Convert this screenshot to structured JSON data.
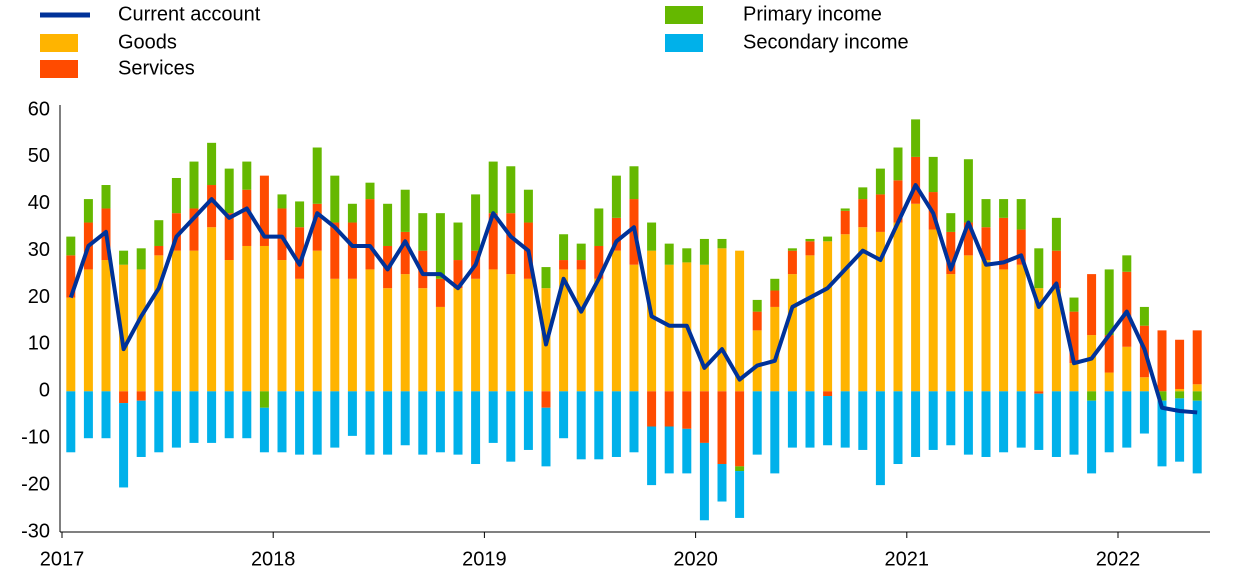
{
  "chart_data": {
    "type": "bar",
    "categories": [
      "2017",
      null,
      null,
      null,
      null,
      null,
      null,
      null,
      null,
      null,
      null,
      null,
      "2018",
      null,
      null,
      null,
      null,
      null,
      null,
      null,
      null,
      null,
      null,
      null,
      "2019",
      null,
      null,
      null,
      null,
      null,
      null,
      null,
      null,
      null,
      null,
      null,
      "2020",
      null,
      null,
      null,
      null,
      null,
      null,
      null,
      null,
      null,
      null,
      null,
      "2021",
      null,
      null,
      null,
      null,
      null,
      null,
      null,
      null,
      null,
      null,
      null,
      "2022",
      null,
      null,
      null,
      null
    ],
    "series": [
      {
        "name": "Current account",
        "type": "line",
        "color": "#003299",
        "values": [
          20,
          31,
          34,
          9,
          16,
          22,
          33,
          37,
          41,
          37,
          39,
          33,
          33,
          27,
          38,
          35,
          31,
          31,
          26,
          32,
          25,
          25,
          22,
          27,
          38,
          33,
          30,
          10,
          24,
          17,
          24,
          32,
          35,
          16,
          14,
          14,
          5,
          9,
          2.5,
          5.5,
          6.5,
          18,
          20,
          22,
          26,
          30,
          28,
          36,
          44,
          38,
          26,
          36,
          27,
          27.5,
          29,
          18,
          23,
          6,
          7,
          12,
          17,
          9,
          -3.5,
          -4.2,
          -4.5
        ]
      },
      {
        "name": "Goods",
        "type": "bar",
        "color": "#ffb400",
        "values": [
          20,
          26,
          28,
          27,
          26,
          29,
          30,
          30,
          35,
          28,
          31,
          31,
          28,
          24,
          30,
          24,
          24,
          26,
          22,
          25,
          22,
          18,
          22,
          24,
          26,
          25,
          24,
          22,
          26,
          26,
          24,
          30,
          27,
          30,
          27,
          27.5,
          27,
          30.5,
          30,
          13,
          18,
          25,
          29,
          32,
          33.5,
          35,
          34,
          36,
          40,
          34.5,
          25,
          29,
          28,
          26,
          27,
          22,
          22,
          6,
          12,
          4,
          9.5,
          3,
          0,
          0.5,
          1.5
        ]
      },
      {
        "name": "Services",
        "type": "bar",
        "color": "#ff4b00",
        "values": [
          9,
          10,
          11,
          -2.5,
          -2,
          2,
          8,
          9,
          9,
          10,
          12,
          15,
          11,
          11,
          10,
          12,
          12,
          15,
          9,
          9,
          8,
          6,
          6,
          6,
          12,
          13,
          12,
          -3.5,
          2,
          2,
          7,
          7,
          14,
          -7.5,
          -7.5,
          -8,
          -11,
          -15.5,
          -16,
          4,
          3.5,
          5,
          3,
          -1,
          5,
          6,
          8,
          9,
          10,
          8,
          9,
          7,
          7,
          11,
          7.5,
          -0.5,
          8,
          11,
          13,
          8,
          16,
          11,
          13,
          10.5,
          11.5
        ]
      },
      {
        "name": "Primary income",
        "type": "bar",
        "color": "#65b800",
        "values": [
          4,
          5,
          5,
          3,
          4.5,
          5.5,
          7.5,
          10,
          9,
          9.5,
          6,
          -3.5,
          3,
          5.5,
          12,
          10,
          4,
          3.5,
          9,
          9,
          8,
          14,
          8,
          12,
          11,
          10,
          7,
          4.5,
          5.5,
          3.5,
          8,
          9,
          7,
          6,
          4.5,
          3,
          5.5,
          2,
          -1,
          2.5,
          2.5,
          0.5,
          0.5,
          1,
          0.5,
          2.5,
          5.5,
          7,
          8,
          7.5,
          4,
          13.5,
          6,
          4,
          6.5,
          8.5,
          7,
          3,
          -2,
          14,
          3.5,
          4,
          -2,
          -1.5,
          -2
        ]
      },
      {
        "name": "Secondary income",
        "type": "bar",
        "color": "#00b1ea",
        "values": [
          -13,
          -10,
          -10,
          -18,
          -12,
          -13,
          -12,
          -11,
          -11,
          -10,
          -10,
          -9.5,
          -13,
          -13.5,
          -13.5,
          -12,
          -9.5,
          -13.5,
          -13.5,
          -11.5,
          -13.5,
          -13,
          -13.5,
          -15.5,
          -11,
          -15,
          -12.5,
          -12.5,
          -10,
          -14.5,
          -14.5,
          -14,
          -13,
          -12.5,
          -10,
          -9.5,
          -16.5,
          -8,
          -10,
          -13.5,
          -17.5,
          -12,
          -12,
          -10.5,
          -12,
          -12.5,
          -20,
          -15.5,
          -14,
          -12.5,
          -11.5,
          -13.5,
          -14,
          -13,
          -12,
          -12,
          -14,
          -13.5,
          -15.5,
          -13,
          -12,
          -9,
          -14,
          -13.5,
          -15.5
        ]
      }
    ],
    "ylim": [
      -30,
      60
    ],
    "yticks": [
      -30,
      -20,
      -10,
      0,
      10,
      20,
      30,
      40,
      50,
      60
    ]
  }
}
